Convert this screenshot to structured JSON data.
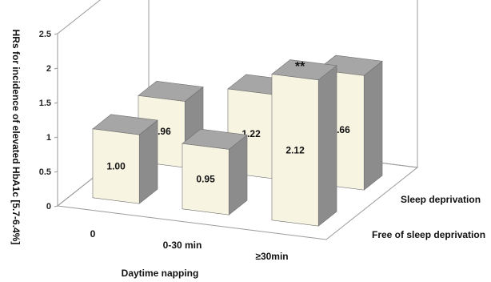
{
  "chart_data": {
    "type": "bar",
    "title": "",
    "xlabel": "Daytime napping",
    "ylabel": "HRs for incidence of elevated HbA1c [5.7-6.4%]",
    "zlabel": "",
    "ylim": [
      0,
      2.5
    ],
    "yticks": [
      0,
      0.5,
      1,
      1.5,
      2,
      2.5
    ],
    "grid": false,
    "categories": [
      "0",
      "0-30 min",
      "≥30min"
    ],
    "series": [
      {
        "name": "Free of sleep deprivation",
        "values": [
          1.0,
          0.95,
          2.12
        ],
        "labels": [
          "1.00",
          "0.95",
          "2.12"
        ]
      },
      {
        "name": "Sleep deprivation",
        "values": [
          0.96,
          1.22,
          1.66
        ],
        "labels": [
          "0.96",
          "1.22",
          "1.66"
        ]
      }
    ],
    "annotations": [
      {
        "category": "≥30min",
        "series": "Free of sleep deprivation",
        "text": "**"
      }
    ],
    "colors": {
      "bar_front": "#f7f4e2",
      "bar_top": "#a6a6a6",
      "bar_side": "#8c8c8c",
      "axis": "#9a9a9a"
    }
  }
}
